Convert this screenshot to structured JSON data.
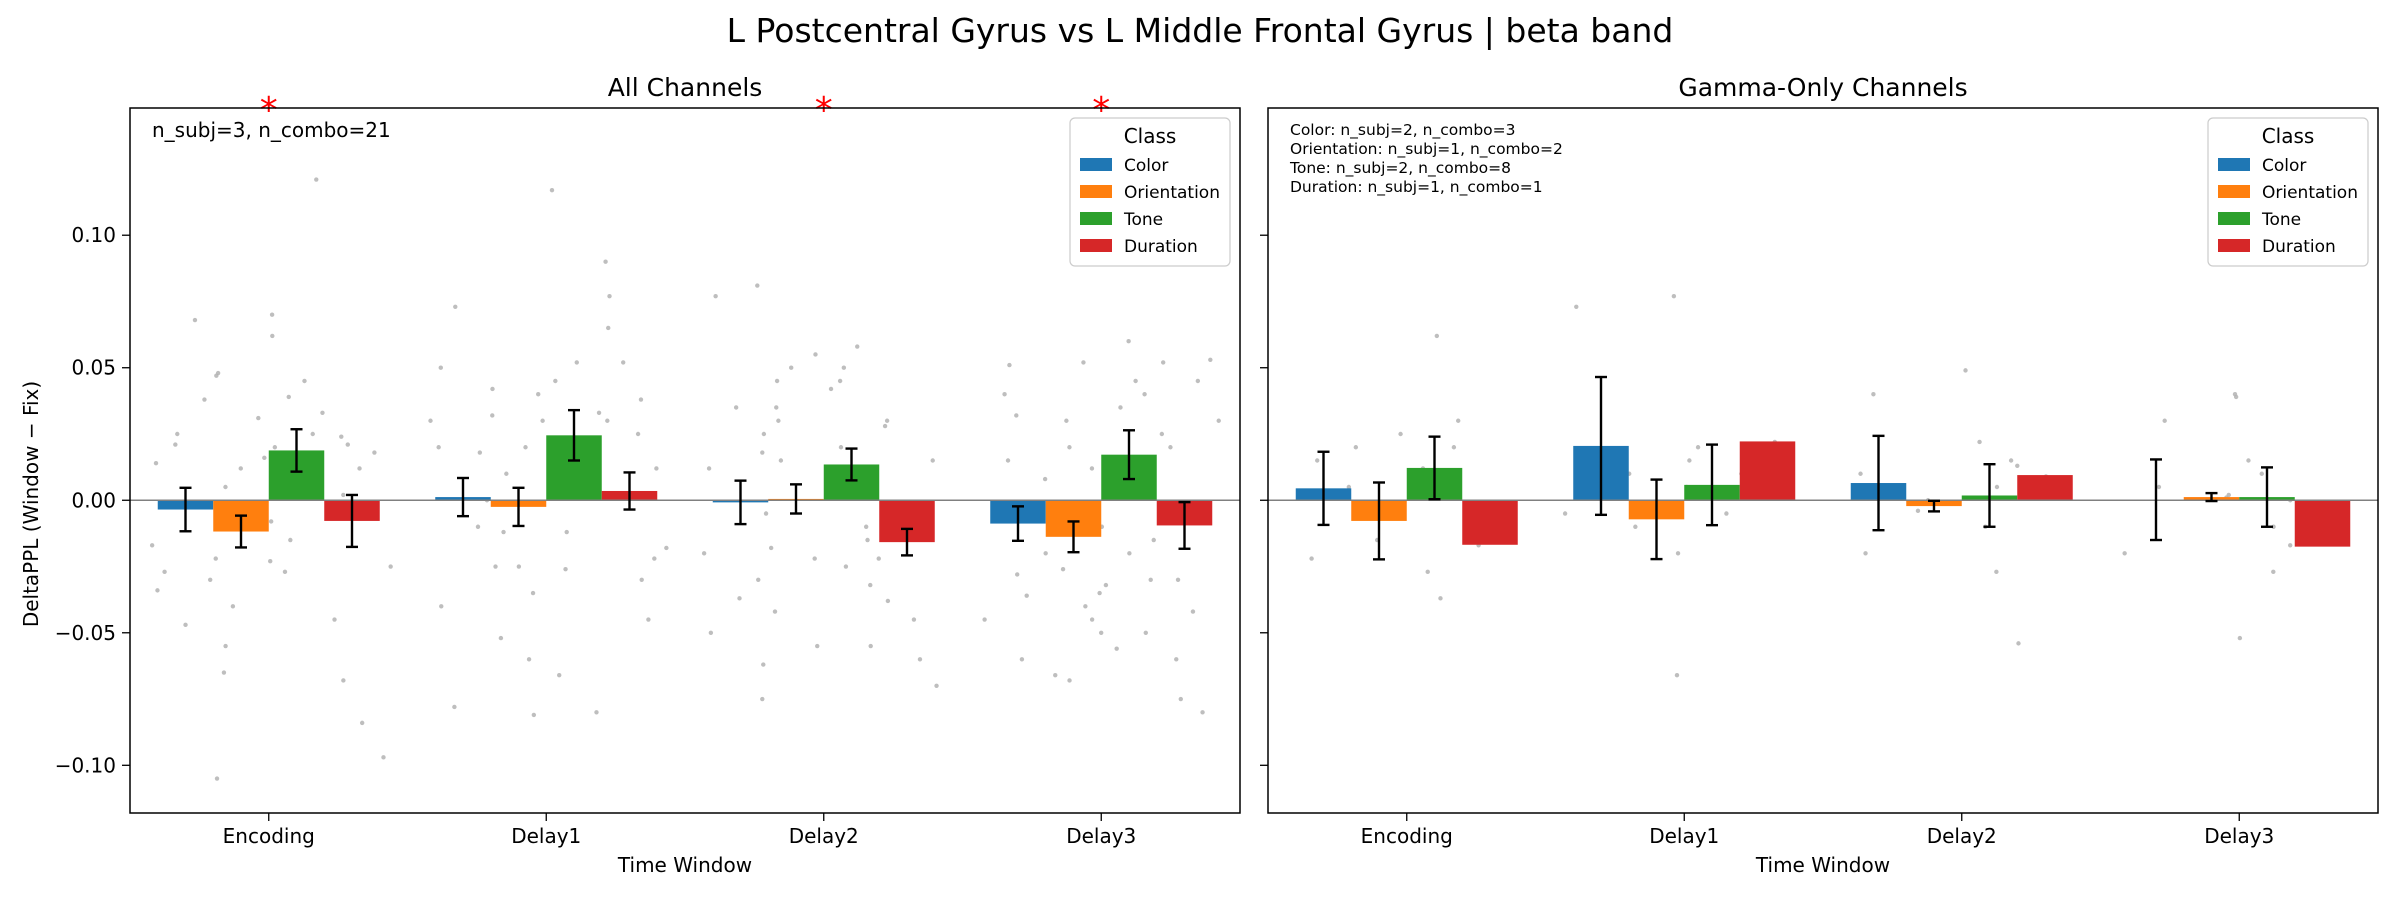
{
  "colors": {
    "Color": "#1f77b4",
    "Orientation": "#ff7f0e",
    "Tone": "#2ca02c",
    "Duration": "#d62728",
    "points": "#b3b3b3",
    "significance": "#ff0000"
  },
  "figure": {
    "suptitle": "L Postcentral Gyrus vs L Middle Frontal Gyrus  |  beta band",
    "ylabel": "DeltaPPL (Window − Fix)"
  },
  "chart_data": [
    {
      "type": "bar",
      "title": "All Channels",
      "xlabel": "Time Window",
      "ylabel": "DeltaPPL (Window − Fix)",
      "ylim": [
        -0.118,
        0.148
      ],
      "yticks": [
        -0.1,
        -0.05,
        0.0,
        0.05,
        0.1
      ],
      "ytick_labels": [
        "−0.10",
        "−0.05",
        "0.00",
        "0.05",
        "0.10"
      ],
      "show_ytick_labels": true,
      "categories": [
        "Encoding",
        "Delay1",
        "Delay2",
        "Delay3"
      ],
      "legend": {
        "title": "Class",
        "position": "top-right"
      },
      "annotation": "n_subj=3, n_combo=21",
      "annotation_lines": [],
      "significance": [
        "*",
        "",
        "*",
        "*"
      ],
      "series": [
        {
          "name": "Color",
          "values": [
            -0.0035,
            0.0012,
            -0.0008,
            -0.0088
          ],
          "errors": [
            0.0082,
            0.0072,
            0.0082,
            0.0065
          ]
        },
        {
          "name": "Orientation",
          "values": [
            -0.0118,
            -0.0025,
            0.0005,
            -0.0138
          ],
          "errors": [
            0.006,
            0.0072,
            0.0055,
            0.0058
          ]
        },
        {
          "name": "Tone",
          "values": [
            0.0188,
            0.0245,
            0.0135,
            0.0172
          ],
          "errors": [
            0.008,
            0.0095,
            0.006,
            0.0092
          ]
        },
        {
          "name": "Duration",
          "values": [
            -0.0078,
            0.0035,
            -0.0158,
            -0.0095
          ],
          "errors": [
            0.0098,
            0.007,
            0.005,
            0.0088
          ]
        }
      ],
      "points": [
        [
          [
            -0.022,
            0.048,
            -0.017,
            0.025,
            -0.105,
            -0.034,
            0.021,
            -0.047,
            0.068,
            -0.027,
            0.014
          ],
          [
            0.02,
            -0.04,
            0.047,
            0.012,
            -0.065,
            -0.03,
            0.031,
            -0.055,
            0.005,
            0.038,
            -0.023
          ],
          [
            0.062,
            0.033,
            -0.015,
            0.07,
            0.003,
            -0.027,
            0.025,
            0.045,
            0.016,
            -0.008,
            0.039
          ],
          [
            0.121,
            -0.025,
            0.024,
            -0.084,
            0.012,
            -0.097,
            -0.045,
            0.002,
            0.021,
            -0.068,
            0.018
          ]
        ],
        [
          [
            0.073,
            -0.078,
            0.05,
            0.02,
            -0.01,
            0.03,
            -0.04,
            0.018,
            0.0,
            -0.025,
            0.032
          ],
          [
            0.03,
            -0.081,
            0.02,
            -0.025,
            0.045,
            -0.052,
            -0.012,
            0.042,
            0.01,
            -0.06,
            -0.035
          ],
          [
            0.117,
            0.09,
            0.077,
            -0.066,
            0.052,
            -0.026,
            0.04,
            0.065,
            -0.012,
            0.033,
            0.022
          ],
          [
            0.052,
            -0.08,
            -0.045,
            0.012,
            0.03,
            -0.018,
            0.005,
            -0.03,
            0.038,
            0.025,
            -0.022
          ]
        ],
        [
          [
            0.077,
            -0.075,
            -0.05,
            0.03,
            -0.02,
            0.045,
            -0.037,
            0.018,
            -0.062,
            0.012,
            0.035
          ],
          [
            0.081,
            -0.042,
            0.05,
            -0.03,
            0.015,
            -0.018,
            0.035,
            -0.022,
            0.025,
            -0.005,
            0.042
          ],
          [
            0.058,
            0.055,
            0.045,
            -0.055,
            -0.025,
            0.02,
            0.03,
            -0.015,
            0.05,
            -0.01,
            0.008
          ],
          [
            -0.07,
            -0.06,
            -0.045,
            0.028,
            -0.012,
            -0.032,
            0.015,
            -0.055,
            0.005,
            -0.022,
            -0.038
          ]
        ],
        [
          [
            -0.066,
            -0.06,
            0.051,
            0.04,
            -0.028,
            -0.02,
            0.032,
            0.015,
            -0.045,
            0.008,
            -0.036
          ],
          [
            -0.068,
            -0.05,
            0.052,
            0.03,
            -0.032,
            -0.035,
            -0.026,
            0.02,
            -0.04,
            0.012,
            -0.01
          ],
          [
            0.06,
            0.052,
            0.045,
            -0.03,
            0.035,
            -0.045,
            0.025,
            -0.02,
            0.01,
            -0.056,
            0.04
          ],
          [
            -0.08,
            -0.075,
            -0.06,
            0.053,
            0.045,
            -0.05,
            0.02,
            -0.03,
            0.03,
            -0.042,
            -0.015
          ]
        ]
      ]
    },
    {
      "type": "bar",
      "title": "Gamma-Only Channels",
      "xlabel": "Time Window",
      "ylabel": "",
      "ylim": [
        -0.118,
        0.148
      ],
      "yticks": [
        -0.1,
        -0.05,
        0.0,
        0.05,
        0.1
      ],
      "ytick_labels": [],
      "show_ytick_labels": false,
      "categories": [
        "Encoding",
        "Delay1",
        "Delay2",
        "Delay3"
      ],
      "legend": {
        "title": "Class",
        "position": "top-right"
      },
      "annotation": "",
      "annotation_lines": [
        "Color: n_subj=2, n_combo=3",
        "Orientation: n_subj=1, n_combo=2",
        "Tone: n_subj=2, n_combo=8",
        "Duration: n_subj=1, n_combo=1"
      ],
      "significance": [
        "",
        "",
        "",
        ""
      ],
      "series": [
        {
          "name": "Color",
          "values": [
            0.0045,
            0.0205,
            0.0065,
            0.0002
          ],
          "errors": [
            0.0138,
            0.026,
            0.0178,
            0.0152
          ]
        },
        {
          "name": "Orientation",
          "values": [
            -0.0078,
            -0.0072,
            -0.0022,
            0.0012
          ],
          "errors": [
            0.0145,
            0.015,
            0.002,
            0.0015
          ]
        },
        {
          "name": "Tone",
          "values": [
            0.0122,
            0.0058,
            0.0018,
            0.0012
          ],
          "errors": [
            0.0118,
            0.0152,
            0.0118,
            0.0112
          ]
        },
        {
          "name": "Duration",
          "values": [
            -0.0168,
            0.0222,
            0.0095,
            -0.0175
          ],
          "errors": [
            0,
            0,
            0,
            0
          ]
        }
      ],
      "points": [
        [
          [
            0.02,
            -0.022,
            0.015
          ],
          [
            0.005,
            -0.015
          ],
          [
            0.062,
            0.03,
            -0.037,
            0.02,
            -0.027,
            0.025,
            0.008,
            0.012
          ],
          [
            -0.017
          ]
        ],
        [
          [
            0.073,
            -0.005,
            0.01
          ],
          [
            -0.01,
            0.005
          ],
          [
            0.077,
            -0.066,
            0.02,
            0.015,
            -0.02,
            0.003,
            0.01,
            -0.005
          ],
          [
            0.022
          ]
        ],
        [
          [
            0.04,
            -0.02,
            0.01
          ],
          [
            -0.004,
            0.0
          ],
          [
            0.049,
            -0.054,
            0.022,
            0.015,
            -0.027,
            0.005,
            -0.01,
            0.013
          ],
          [
            0.009
          ]
        ],
        [
          [
            0.03,
            -0.02,
            0.005
          ],
          [
            0.001,
            0.002
          ],
          [
            0.04,
            0.039,
            -0.052,
            -0.027,
            0.015,
            0.0,
            0.01,
            -0.01
          ],
          [
            -0.017
          ]
        ]
      ]
    }
  ]
}
